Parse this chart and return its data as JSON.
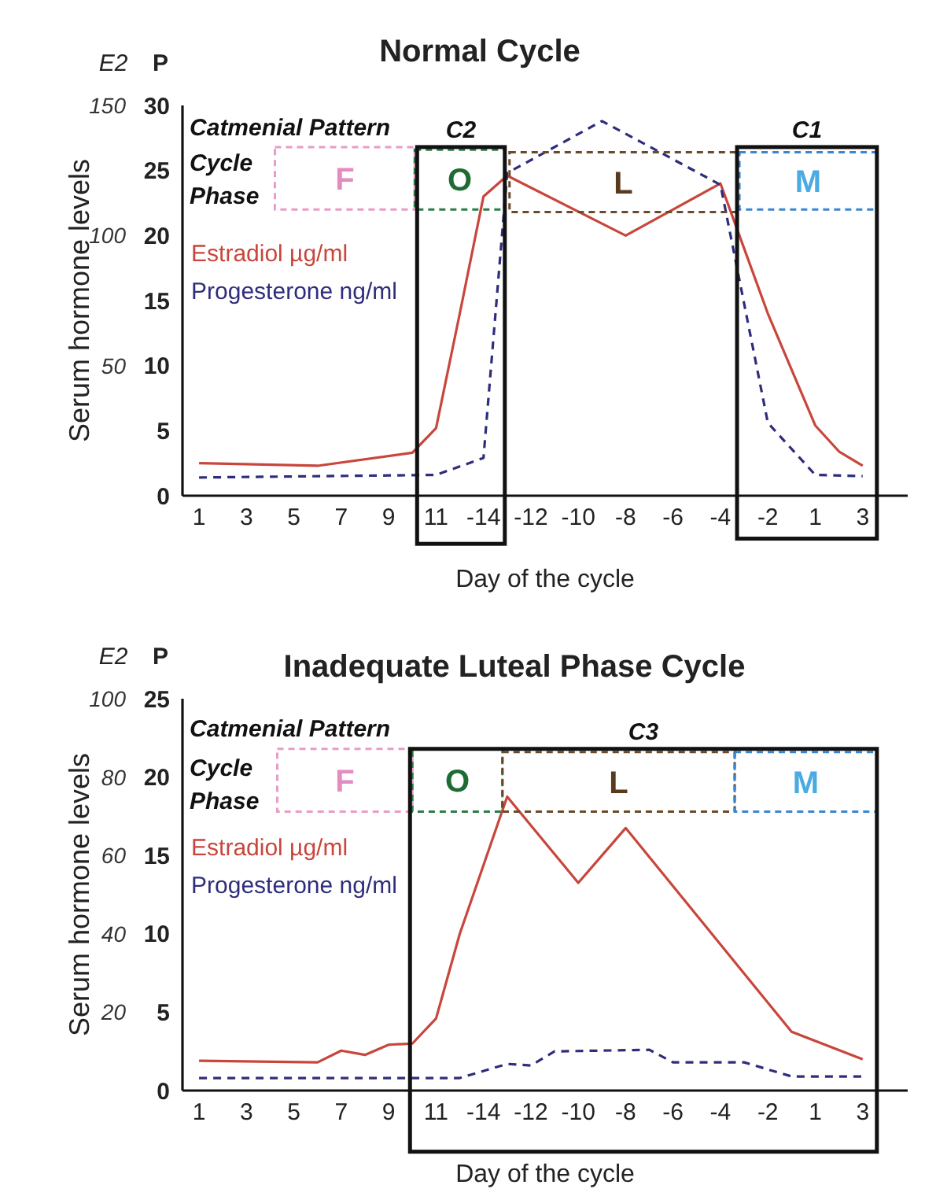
{
  "chart_data": [
    {
      "type": "line",
      "title": "Normal Cycle",
      "xlabel": "Day of the cycle",
      "ylabel": "Serum hormone levels",
      "categories": [
        "1",
        null,
        "3",
        null,
        "5",
        null,
        "7",
        null,
        "9",
        null,
        "11",
        null,
        "-14",
        null,
        "-12",
        null,
        "-10",
        null,
        "-8",
        null,
        "-6",
        null,
        "-4",
        null,
        "-2",
        null,
        "1",
        null,
        "3"
      ],
      "series": [
        {
          "name": "Estradiol µg/ml",
          "color": "#c8463c",
          "line_style": "solid",
          "values": [
            12.5,
            null,
            null,
            null,
            null,
            11.5,
            null,
            null,
            null,
            16.5,
            26,
            70,
            115,
            123,
            null,
            null,
            null,
            null,
            100,
            null,
            null,
            null,
            120,
            95,
            70,
            null,
            27,
            17,
            11.5
          ]
        },
        {
          "name": "Progesterone ng/ml",
          "color": "#2e2d7c",
          "axis": "y2",
          "line_style": "dashed",
          "values": [
            1.4,
            null,
            null,
            null,
            null,
            null,
            null,
            null,
            null,
            null,
            1.6,
            null,
            2.9,
            24.8,
            null,
            null,
            null,
            28.8,
            null,
            null,
            null,
            null,
            23.9,
            null,
            5.6,
            null,
            1.6,
            null,
            1.5
          ]
        }
      ],
      "ylim": [
        0,
        150
      ],
      "yticks": [
        50,
        100,
        150
      ],
      "y2lim": [
        0,
        30
      ],
      "y2ticks": [
        0,
        5,
        10,
        15,
        20,
        25,
        30
      ],
      "marker": "none",
      "legend": "top left",
      "annotations": [
        "Catmenial Pattern",
        "Cycle Phase",
        "F",
        "O",
        "L",
        "M",
        "C2",
        "C1",
        "E2",
        "P"
      ]
    },
    {
      "type": "line",
      "title": "Inadequate Luteal Phase Cycle",
      "xlabel": "Day of the cycle",
      "ylabel": "Serum hormone levels",
      "categories": [
        "1",
        null,
        "3",
        null,
        "5",
        null,
        "7",
        null,
        "9",
        null,
        "11",
        null,
        "-14",
        null,
        "-12",
        null,
        "-10",
        null,
        "-8",
        null,
        "-6",
        null,
        "-4",
        null,
        "-2",
        null,
        "1",
        null,
        "3"
      ],
      "series": [
        {
          "name": "Estradiol µg/ml",
          "color": "#c8463c",
          "line_style": "solid",
          "values": [
            7.6,
            null,
            null,
            null,
            null,
            7.2,
            10.2,
            9.1,
            11.7,
            12,
            18.4,
            40,
            null,
            75,
            null,
            null,
            53,
            null,
            67,
            null,
            null,
            null,
            null,
            null,
            null,
            15,
            null,
            null,
            8
          ]
        },
        {
          "name": "Progesterone ng/ml",
          "color": "#2e2d7c",
          "axis": "y2",
          "line_style": "dashed",
          "values": [
            0.8,
            null,
            null,
            null,
            null,
            null,
            null,
            null,
            null,
            null,
            null,
            0.8,
            null,
            1.7,
            1.6,
            2.5,
            null,
            null,
            null,
            2.6,
            1.8,
            null,
            null,
            1.8,
            null,
            0.9,
            null,
            null,
            0.9
          ]
        }
      ],
      "ylim": [
        0,
        100
      ],
      "yticks": [
        20,
        40,
        60,
        80,
        100
      ],
      "y2lim": [
        0,
        25
      ],
      "y2ticks": [
        0,
        5,
        10,
        15,
        20,
        25
      ],
      "marker": "none",
      "legend": "top left",
      "annotations": [
        "Catmenial Pattern",
        "Cycle Phase",
        "F",
        "O",
        "L",
        "M",
        "C3",
        "E2",
        "P"
      ]
    }
  ]
}
